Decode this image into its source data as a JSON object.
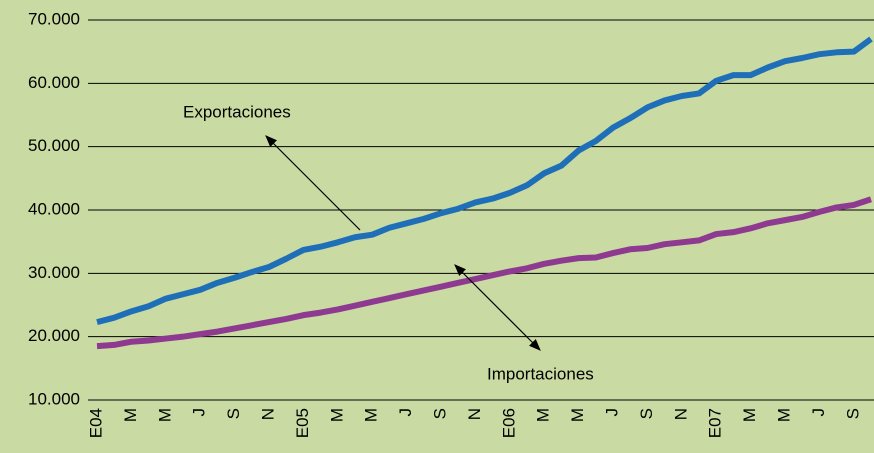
{
  "chart_data": {
    "type": "line",
    "categories": [
      "E04",
      null,
      "M",
      null,
      "M",
      null,
      "J",
      null,
      "S",
      null,
      "N",
      null,
      "E05",
      null,
      "M",
      null,
      "M",
      null,
      "J",
      null,
      "S",
      null,
      "N",
      null,
      "E06",
      null,
      "M",
      null,
      "M",
      null,
      "J",
      null,
      "S",
      null,
      "N",
      null,
      "E07",
      null,
      "M",
      null,
      "M",
      null,
      "J",
      null,
      "S",
      null
    ],
    "series": [
      {
        "name": "Exportaciones",
        "color": "#1f6fb8",
        "values": [
          22300,
          23000,
          24000,
          24800,
          26000,
          26700,
          27400,
          28500,
          29300,
          30200,
          31000,
          32300,
          33700,
          34200,
          34900,
          35700,
          36100,
          37200,
          37900,
          38600,
          39500,
          40200,
          41200,
          41800,
          42700,
          43900,
          45800,
          47000,
          49400,
          50900,
          53000,
          54500,
          56200,
          57300,
          58000,
          58400,
          60400,
          61300,
          61300,
          62500,
          63500,
          64000,
          64600,
          64900,
          65000,
          67000
        ]
      },
      {
        "name": "Importaciones",
        "color": "#8e3a91",
        "values": [
          18500,
          18700,
          19200,
          19400,
          19700,
          20000,
          20400,
          20800,
          21300,
          21800,
          22300,
          22800,
          23400,
          23800,
          24300,
          24900,
          25500,
          26100,
          26700,
          27300,
          27900,
          28500,
          29100,
          29700,
          30300,
          30800,
          31500,
          32000,
          32400,
          32500,
          33200,
          33800,
          34000,
          34600,
          34900,
          35200,
          36200,
          36500,
          37100,
          37900,
          38400,
          38900,
          39700,
          40400,
          40800,
          41700
        ]
      }
    ],
    "ylim": [
      10000,
      70000
    ],
    "yticks": [
      {
        "value": 10000,
        "label": "10.000"
      },
      {
        "value": 20000,
        "label": "20.000"
      },
      {
        "value": 30000,
        "label": "30.000"
      },
      {
        "value": 40000,
        "label": "40.000"
      },
      {
        "value": 50000,
        "label": "50.000"
      },
      {
        "value": 60000,
        "label": "60.000"
      },
      {
        "value": 70000,
        "label": "70.000"
      }
    ],
    "grid": true,
    "annotations": [
      "Exportaciones",
      "Importaciones"
    ]
  }
}
